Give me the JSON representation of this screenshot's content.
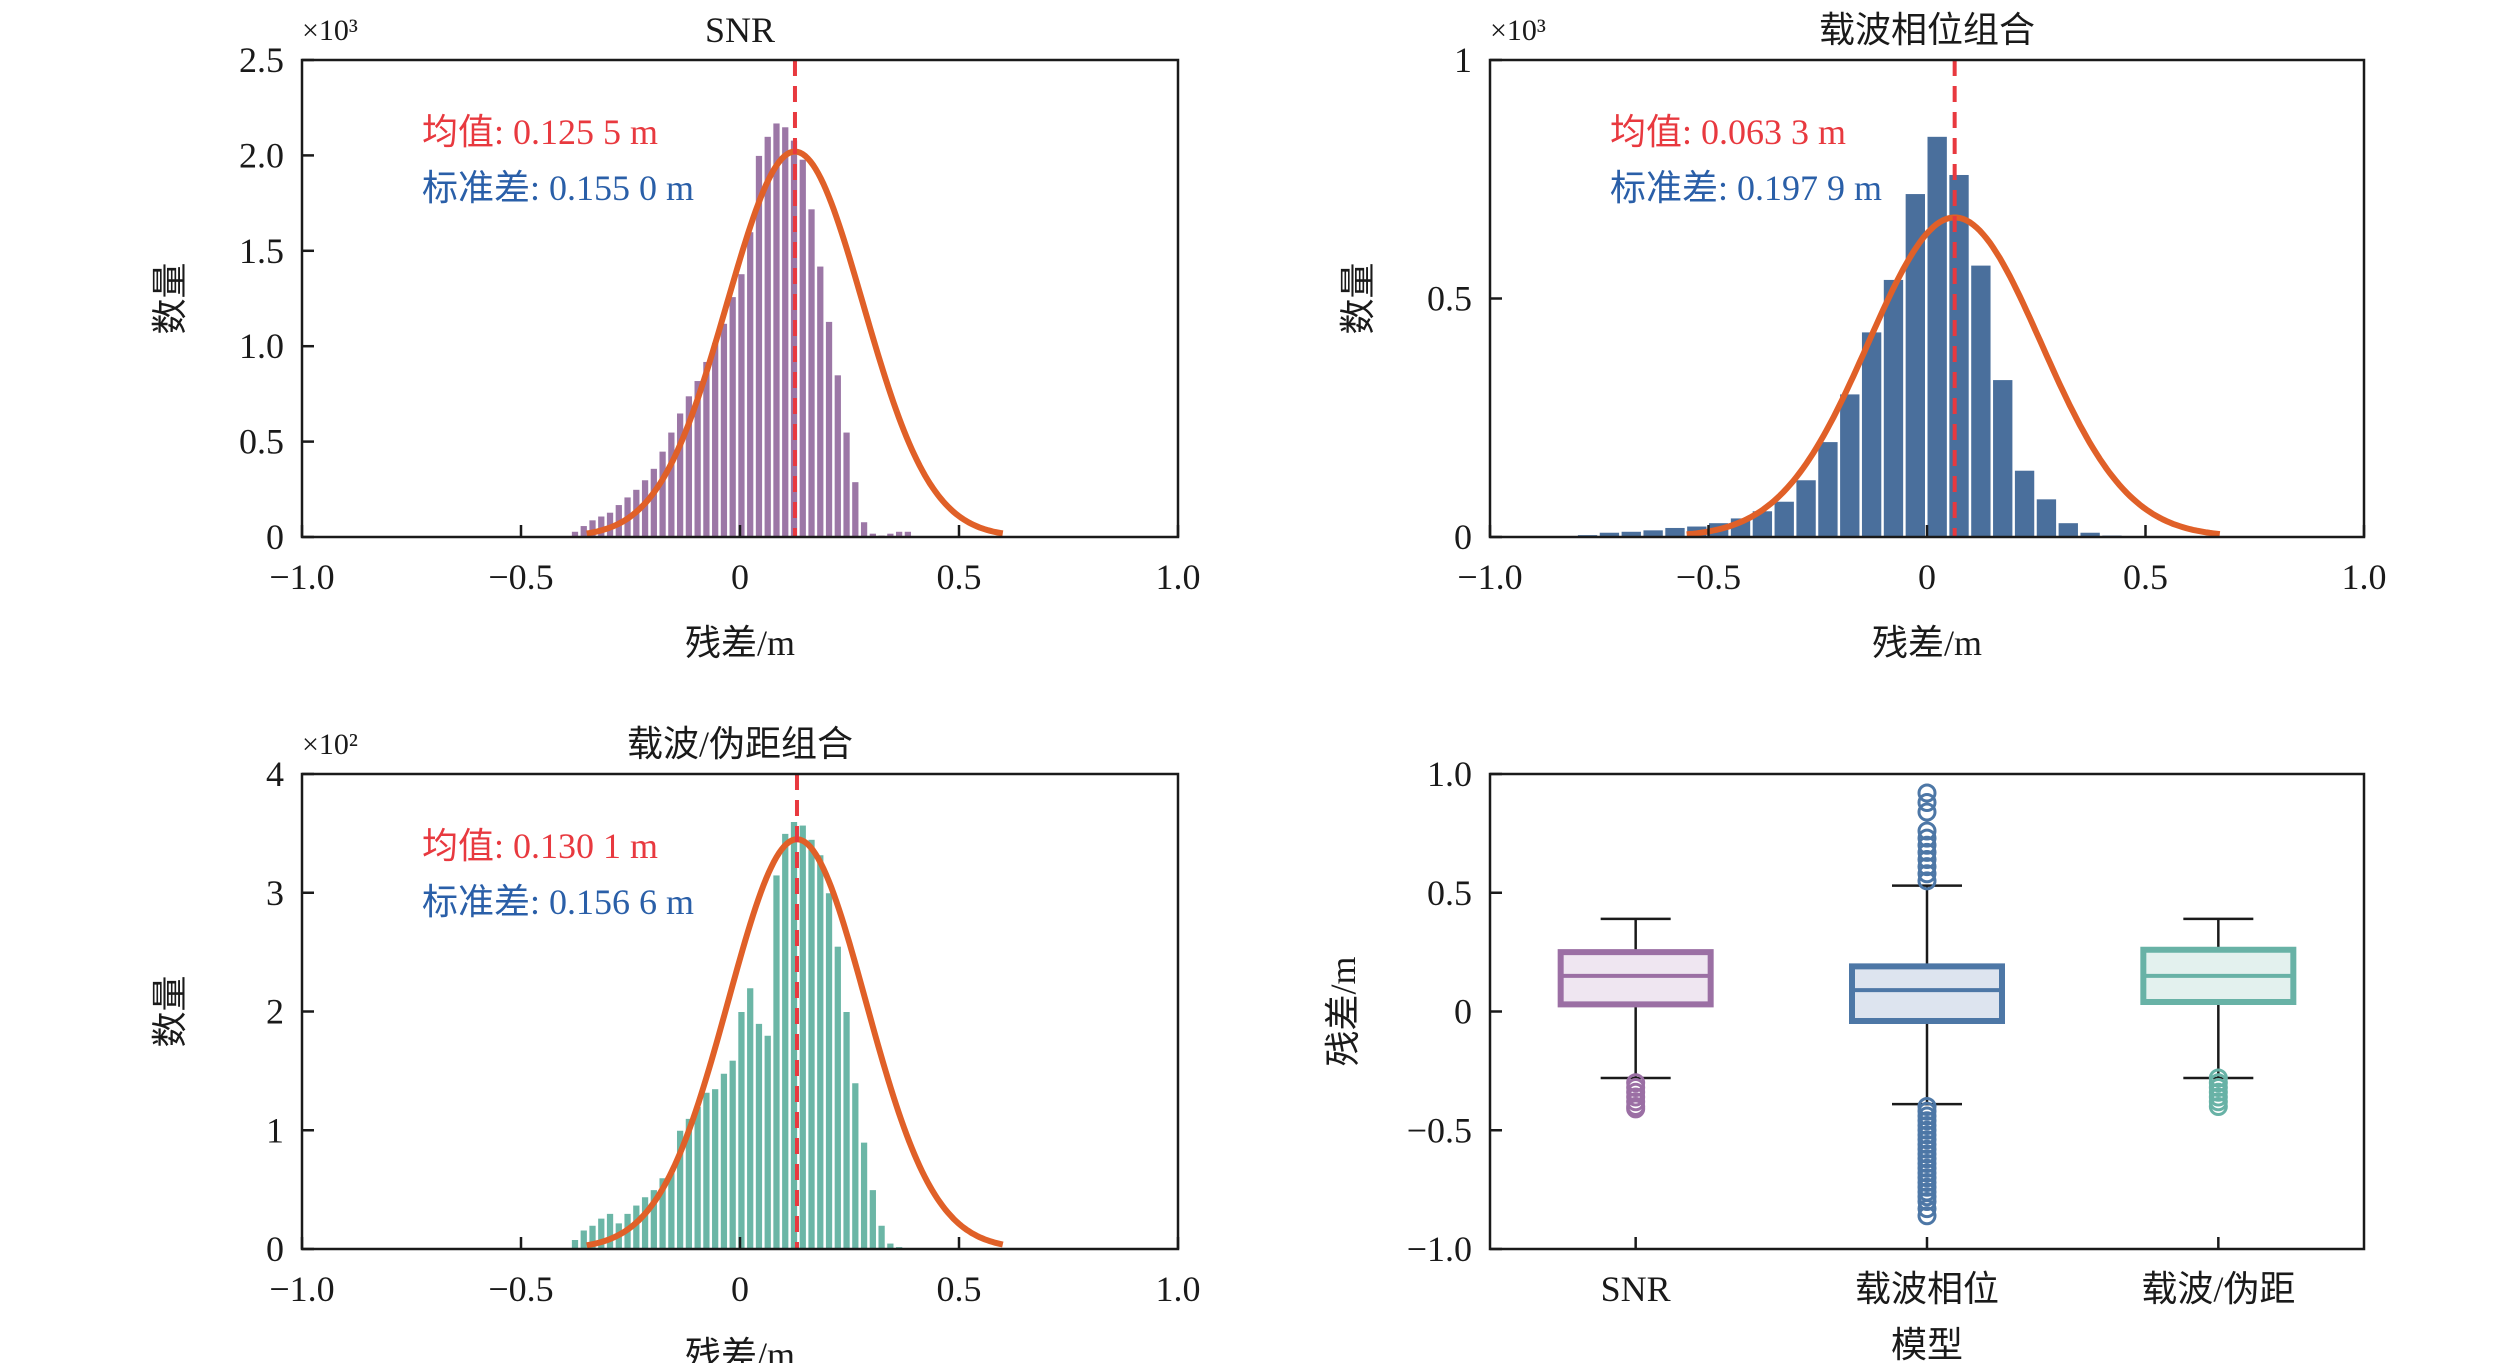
{
  "chart_data": [
    {
      "type": "histogram",
      "title": "SNR",
      "xlabel": "残差/m",
      "ylabel": "数量",
      "scale_label": "×10³",
      "xlim": [
        -1.0,
        1.0
      ],
      "ylim": [
        0,
        2.5
      ],
      "xticks": [
        "−1.0",
        "−0.5",
        "0",
        "0.5",
        "1.0"
      ],
      "yticks": [
        "0",
        "0.5",
        "1.0",
        "1.5",
        "2.0",
        "2.5"
      ],
      "xtick_values": [
        -1.0,
        -0.5,
        0,
        0.5,
        1.0
      ],
      "ytick_values": [
        0,
        0.5,
        1.0,
        1.5,
        2.0,
        2.5
      ],
      "bar_color": "#9c77a6",
      "bins": {
        "start": -0.385,
        "width": 0.02,
        "values": [
          0.03,
          0.06,
          0.09,
          0.11,
          0.13,
          0.17,
          0.21,
          0.25,
          0.3,
          0.36,
          0.45,
          0.55,
          0.65,
          0.74,
          0.82,
          0.92,
          1.02,
          1.12,
          1.26,
          1.38,
          1.6,
          2.0,
          2.1,
          2.17,
          2.15,
          2.08,
          1.98,
          1.72,
          1.42,
          1.13,
          0.85,
          0.55,
          0.29,
          0.08,
          0.02,
          0.01,
          0.02,
          0.03,
          0.03
        ]
      },
      "fit": {
        "mean": 0.1255,
        "std": 0.155,
        "peak": 2.02,
        "range": [
          -0.35,
          0.6
        ]
      },
      "mean_line": 0.1255,
      "mean_text": "均值: 0.125 5 m",
      "std_text": "标准差: 0.155 0 m",
      "mean_color": "#e8393f",
      "std_color": "#2a5fa8",
      "fit_color": "#e06028"
    },
    {
      "type": "histogram",
      "title": "载波相位组合",
      "xlabel": "残差/m",
      "ylabel": "数量",
      "scale_label": "×10³",
      "xlim": [
        -1.0,
        1.0
      ],
      "ylim": [
        0,
        1
      ],
      "xticks": [
        "−1.0",
        "−0.5",
        "0",
        "0.5",
        "1.0"
      ],
      "yticks": [
        "0",
        "0.5",
        "1"
      ],
      "xtick_values": [
        -1.0,
        -0.5,
        0,
        0.5,
        1.0
      ],
      "ytick_values": [
        0,
        0.5,
        1
      ],
      "bar_color": "#4a6f9c",
      "bins": {
        "start": -0.8,
        "width": 0.05,
        "values": [
          0.005,
          0.01,
          0.012,
          0.015,
          0.02,
          0.023,
          0.03,
          0.04,
          0.055,
          0.075,
          0.12,
          0.2,
          0.3,
          0.43,
          0.54,
          0.72,
          0.84,
          0.76,
          0.57,
          0.33,
          0.14,
          0.08,
          0.03,
          0.01,
          0.004,
          0.002,
          0.001,
          0.001,
          0.0,
          0.0,
          0.0
        ]
      },
      "fit": {
        "mean": 0.0633,
        "std": 0.1979,
        "peak": 0.67,
        "range": [
          -0.55,
          0.67
        ]
      },
      "mean_line": 0.0633,
      "mean_text": "均值: 0.063 3 m",
      "std_text": "标准差: 0.197 9 m",
      "mean_color": "#e8393f",
      "std_color": "#2a5fa8",
      "fit_color": "#e06028"
    },
    {
      "type": "histogram",
      "title": "载波/伪距组合",
      "xlabel": "残差/m",
      "ylabel": "数量",
      "scale_label": "×10²",
      "xlim": [
        -1.0,
        1.0
      ],
      "ylim": [
        0,
        4
      ],
      "xticks": [
        "−1.0",
        "−0.5",
        "0",
        "0.5",
        "1.0"
      ],
      "yticks": [
        "0",
        "1",
        "2",
        "3",
        "4"
      ],
      "xtick_values": [
        -1.0,
        -0.5,
        0,
        0.5,
        1.0
      ],
      "ytick_values": [
        0,
        1,
        2,
        3,
        4
      ],
      "bar_color": "#6bb6a6",
      "bins": {
        "start": -0.385,
        "width": 0.02,
        "values": [
          0.08,
          0.16,
          0.2,
          0.26,
          0.3,
          0.22,
          0.3,
          0.37,
          0.44,
          0.5,
          0.6,
          0.65,
          1.0,
          1.1,
          1.2,
          1.32,
          1.35,
          1.48,
          1.59,
          2.0,
          2.2,
          1.9,
          1.8,
          3.15,
          3.5,
          3.6,
          3.57,
          3.45,
          3.32,
          3.0,
          2.55,
          2.0,
          1.4,
          0.9,
          0.5,
          0.2,
          0.05,
          0.02,
          0.01
        ]
      },
      "fit": {
        "mean": 0.1301,
        "std": 0.1566,
        "peak": 3.45,
        "range": [
          -0.35,
          0.6
        ]
      },
      "mean_line": 0.1301,
      "mean_text": "均值: 0.130 1 m",
      "std_text": "标准差: 0.156 6 m",
      "mean_color": "#e8393f",
      "std_color": "#2a5fa8",
      "fit_color": "#e06028"
    },
    {
      "type": "box",
      "xlabel": "模型",
      "ylabel": "残差/m",
      "ylim": [
        -1.0,
        1.0
      ],
      "yticks": [
        "−1.0",
        "−0.5",
        "0",
        "0.5",
        "1.0"
      ],
      "ytick_values": [
        -1.0,
        -0.5,
        0,
        0.5,
        1.0
      ],
      "categories": [
        "SNR",
        "载波相位",
        "载波/伪距"
      ],
      "boxes": [
        {
          "whisker_low": -0.28,
          "q1": 0.03,
          "median": 0.15,
          "q3": 0.25,
          "whisker_high": 0.39,
          "outliers_low": [
            -0.3,
            -0.32,
            -0.34,
            -0.36,
            -0.38,
            -0.4,
            -0.41
          ],
          "outliers_high": [],
          "edge": "#9b6fa4",
          "fill": "#efe6f1"
        },
        {
          "whisker_low": -0.39,
          "q1": -0.04,
          "median": 0.09,
          "q3": 0.19,
          "whisker_high": 0.53,
          "outliers_low": [
            -0.4,
            -0.42,
            -0.44,
            -0.46,
            -0.48,
            -0.5,
            -0.52,
            -0.54,
            -0.56,
            -0.58,
            -0.6,
            -0.62,
            -0.64,
            -0.66,
            -0.68,
            -0.7,
            -0.72,
            -0.74,
            -0.76,
            -0.78,
            -0.8,
            -0.83,
            -0.86
          ],
          "outliers_high": [
            0.55,
            0.58,
            0.61,
            0.64,
            0.67,
            0.7,
            0.73,
            0.76,
            0.84,
            0.88,
            0.92
          ],
          "edge": "#4d77a6",
          "fill": "#dde4ef"
        },
        {
          "whisker_low": -0.28,
          "q1": 0.04,
          "median": 0.15,
          "q3": 0.26,
          "whisker_high": 0.39,
          "outliers_low": [
            -0.28,
            -0.3,
            -0.32,
            -0.34,
            -0.36,
            -0.38,
            -0.4
          ],
          "outliers_high": [],
          "edge": "#68b2a6",
          "fill": "#e3f1ee"
        }
      ]
    }
  ]
}
